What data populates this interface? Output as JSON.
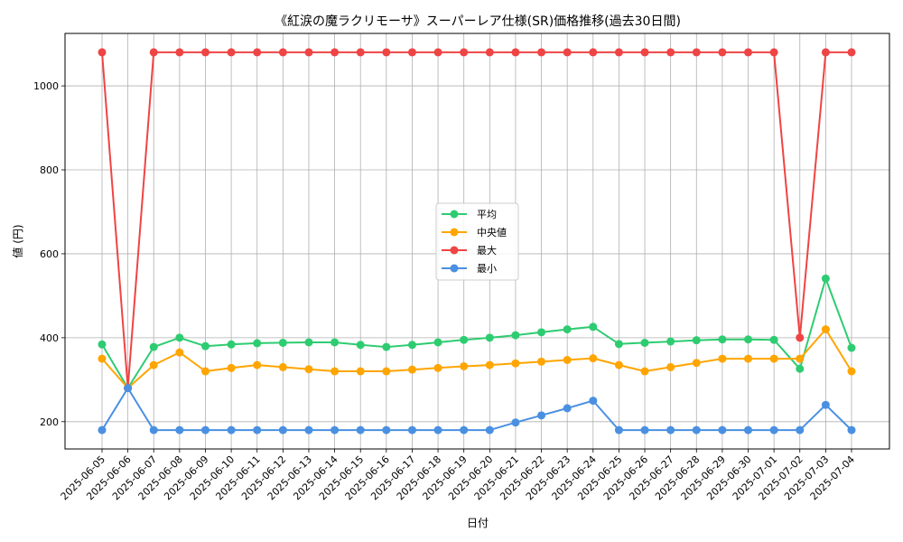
{
  "chart_data": {
    "type": "line",
    "title": "《紅涙の魔ラクリモーサ》スーパーレア仕様(SR)価格推移(過去30日間)",
    "xlabel": "日付",
    "ylabel": "値 (円)",
    "ylim": [
      135,
      1125
    ],
    "yticks": [
      200,
      400,
      600,
      800,
      1000
    ],
    "grid": true,
    "legend_position": "center",
    "categories": [
      "2025-06-05",
      "2025-06-06",
      "2025-06-07",
      "2025-06-08",
      "2025-06-09",
      "2025-06-10",
      "2025-06-11",
      "2025-06-12",
      "2025-06-13",
      "2025-06-14",
      "2025-06-15",
      "2025-06-16",
      "2025-06-17",
      "2025-06-18",
      "2025-06-19",
      "2025-06-20",
      "2025-06-21",
      "2025-06-22",
      "2025-06-23",
      "2025-06-24",
      "2025-06-25",
      "2025-06-26",
      "2025-06-27",
      "2025-06-28",
      "2025-06-29",
      "2025-06-30",
      "2025-07-01",
      "2025-07-02",
      "2025-07-03",
      "2025-07-04"
    ],
    "series": [
      {
        "name": "平均",
        "color": "#2ecc71",
        "values": [
          384,
          280,
          378,
          400,
          380,
          384,
          387,
          388,
          389,
          389,
          383,
          378,
          383,
          389,
          395,
          400,
          406,
          413,
          420,
          426,
          385,
          388,
          391,
          394,
          396,
          396,
          395,
          326,
          541,
          376
        ]
      },
      {
        "name": "中央値",
        "color": "#ffa500",
        "values": [
          350,
          280,
          335,
          365,
          320,
          328,
          335,
          330,
          325,
          320,
          320,
          320,
          324,
          328,
          332,
          335,
          339,
          343,
          347,
          351,
          335,
          320,
          330,
          340,
          350,
          350,
          350,
          350,
          420,
          320
        ]
      },
      {
        "name": "最大",
        "color": "#ef4444",
        "values": [
          1080,
          280,
          1080,
          1080,
          1080,
          1080,
          1080,
          1080,
          1080,
          1080,
          1080,
          1080,
          1080,
          1080,
          1080,
          1080,
          1080,
          1080,
          1080,
          1080,
          1080,
          1080,
          1080,
          1080,
          1080,
          1080,
          1080,
          400,
          1080,
          1080
        ]
      },
      {
        "name": "最小",
        "color": "#4a90e2",
        "values": [
          180,
          280,
          180,
          180,
          180,
          180,
          180,
          180,
          180,
          180,
          180,
          180,
          180,
          180,
          180,
          180,
          198,
          215,
          232,
          250,
          180,
          180,
          180,
          180,
          180,
          180,
          180,
          180,
          240,
          180
        ]
      }
    ]
  }
}
